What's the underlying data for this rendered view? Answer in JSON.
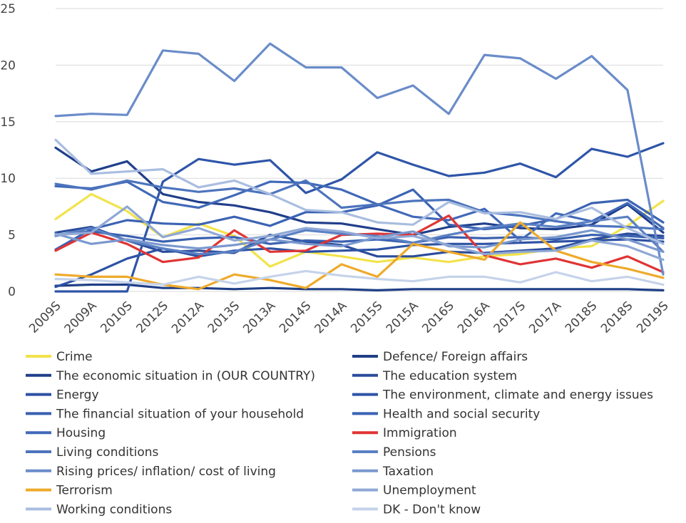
{
  "chart_data": {
    "type": "line",
    "title": "",
    "xlabel": "",
    "ylabel": "",
    "ylim": [
      0,
      25
    ],
    "yticks": [
      0,
      5,
      10,
      15,
      20,
      25
    ],
    "grid": true,
    "legend_position": "bottom",
    "categories": [
      "2009S",
      "2009A",
      "2010S",
      "2012S",
      "2012A",
      "2013S",
      "2013A",
      "2014S",
      "2014A",
      "2015S",
      "2015A",
      "2016S",
      "2016A",
      "2017S",
      "2017A",
      "2018S",
      "2018S",
      "2019S"
    ],
    "series": [
      {
        "name": "Crime",
        "color": "#f2e34a",
        "values": [
          6.4,
          8.6,
          7.1,
          4.8,
          6.0,
          4.9,
          2.2,
          3.5,
          3.1,
          2.6,
          3.0,
          2.6,
          3.1,
          3.3,
          3.8,
          4.0,
          5.8,
          8.0
        ]
      },
      {
        "name": "Defence/ Foreign affairs",
        "color": "#1f3f86",
        "values": [
          0.5,
          0.6,
          0.6,
          0.3,
          0.3,
          0.2,
          0.3,
          0.2,
          0.2,
          0.1,
          0.2,
          0.2,
          0.2,
          0.2,
          0.2,
          0.2,
          0.2,
          0.1
        ]
      },
      {
        "name": "The economic situation in (OUR COUNTRY)",
        "color": "#203f8a",
        "values": [
          12.7,
          10.6,
          11.5,
          8.6,
          7.9,
          7.6,
          7.0,
          6.1,
          6.0,
          5.5,
          5.0,
          5.7,
          6.0,
          5.6,
          5.5,
          5.9,
          7.7,
          5.2
        ]
      },
      {
        "name": "The education system",
        "color": "#2a4c9b",
        "values": [
          5.2,
          5.7,
          4.5,
          3.5,
          3.6,
          3.4,
          5.0,
          4.4,
          4.1,
          3.1,
          3.1,
          3.5,
          3.4,
          3.6,
          3.8,
          4.6,
          5.1,
          4.9
        ]
      },
      {
        "name": "Energy",
        "color": "#2d52a4",
        "values": [
          0.4,
          1.5,
          2.9,
          3.8,
          3.1,
          3.6,
          3.8,
          3.5,
          3.6,
          3.7,
          4.1,
          4.2,
          4.2,
          4.3,
          4.4,
          4.5,
          4.6,
          4.4
        ]
      },
      {
        "name": "The environment, climate and energy issues",
        "color": "#2e55a8",
        "values": [
          0.0,
          0.0,
          0.0,
          9.7,
          11.7,
          11.2,
          11.6,
          8.7,
          9.9,
          12.3,
          11.2,
          10.2,
          10.5,
          11.3,
          10.1,
          12.6,
          11.9,
          13.1
        ]
      },
      {
        "name": "The financial situation of your household",
        "color": "#3960b0",
        "values": [
          5.0,
          5.3,
          4.9,
          4.4,
          4.7,
          4.8,
          4.2,
          4.5,
          4.4,
          4.6,
          4.3,
          4.8,
          4.7,
          4.8,
          4.6,
          5.0,
          4.9,
          4.7
        ]
      },
      {
        "name": "Health and social security",
        "color": "#3b63b4",
        "values": [
          3.7,
          5.5,
          6.3,
          6.0,
          5.9,
          6.6,
          5.8,
          7.0,
          7.0,
          7.6,
          9.0,
          5.9,
          5.5,
          5.8,
          6.4,
          7.8,
          8.1,
          6.1
        ]
      },
      {
        "name": "Housing",
        "color": "#4169b8",
        "values": [
          9.3,
          9.1,
          9.7,
          7.9,
          7.4,
          8.5,
          9.7,
          9.6,
          9.0,
          7.7,
          6.6,
          6.3,
          7.3,
          4.5,
          6.9,
          6.2,
          7.8,
          5.6
        ]
      },
      {
        "name": "Immigration",
        "color": "#e03434",
        "values": [
          3.6,
          5.2,
          4.2,
          2.6,
          3.0,
          5.4,
          3.5,
          3.6,
          5.0,
          5.1,
          5.0,
          6.7,
          3.2,
          2.4,
          2.9,
          2.1,
          3.1,
          1.7
        ]
      },
      {
        "name": "Living conditions",
        "color": "#4d74bd",
        "values": [
          9.5,
          9.0,
          9.8,
          9.2,
          8.8,
          9.1,
          8.6,
          9.8,
          7.4,
          7.7,
          8.0,
          8.1,
          7.0,
          6.7,
          6.2,
          5.8,
          5.7,
          5.5
        ]
      },
      {
        "name": "Pensions",
        "color": "#5a80c4",
        "values": [
          4.9,
          5.6,
          4.5,
          3.8,
          3.3,
          3.5,
          4.6,
          5.4,
          5.1,
          4.9,
          4.3,
          5.0,
          5.6,
          6.0,
          5.7,
          6.2,
          6.6,
          3.5
        ]
      },
      {
        "name": "Rising prices/ inflation/ cost of living",
        "color": "#6a8cc9",
        "values": [
          15.5,
          15.7,
          15.6,
          21.3,
          21.0,
          18.6,
          21.9,
          19.8,
          19.8,
          17.1,
          18.2,
          15.7,
          20.9,
          20.6,
          18.8,
          20.8,
          17.8,
          1.5
        ]
      },
      {
        "name": "Taxation",
        "color": "#7a98ce",
        "values": [
          5.1,
          4.2,
          4.6,
          4.1,
          3.8,
          4.1,
          4.6,
          4.2,
          4.0,
          4.8,
          5.3,
          4.0,
          3.9,
          4.6,
          4.8,
          5.4,
          4.6,
          3.5
        ]
      },
      {
        "name": "Terrorism",
        "color": "#eeaa2a",
        "values": [
          1.5,
          1.3,
          1.3,
          0.6,
          0.2,
          1.5,
          1.0,
          0.3,
          2.4,
          1.3,
          4.2,
          3.5,
          2.8,
          6.1,
          3.6,
          2.6,
          2.0,
          1.2
        ]
      },
      {
        "name": "Unemployment",
        "color": "#8fa8d6",
        "values": [
          5.0,
          5.2,
          7.5,
          4.8,
          5.6,
          4.5,
          4.9,
          5.6,
          5.3,
          4.7,
          4.9,
          4.1,
          3.3,
          3.5,
          3.6,
          4.5,
          4.0,
          2.8
        ]
      },
      {
        "name": "Working conditions",
        "color": "#a9bde0",
        "values": [
          13.4,
          10.4,
          10.6,
          10.8,
          9.2,
          9.8,
          8.6,
          7.2,
          7.0,
          6.1,
          5.9,
          7.9,
          6.9,
          7.0,
          6.4,
          7.4,
          5.6,
          4.2
        ]
      },
      {
        "name": "DK - Don't know",
        "color": "#c5d3ea",
        "values": [
          1.1,
          1.0,
          0.8,
          0.6,
          1.3,
          0.7,
          1.3,
          1.8,
          1.4,
          1.1,
          0.9,
          1.3,
          1.3,
          0.8,
          1.7,
          0.9,
          1.3,
          0.6
        ]
      }
    ]
  }
}
